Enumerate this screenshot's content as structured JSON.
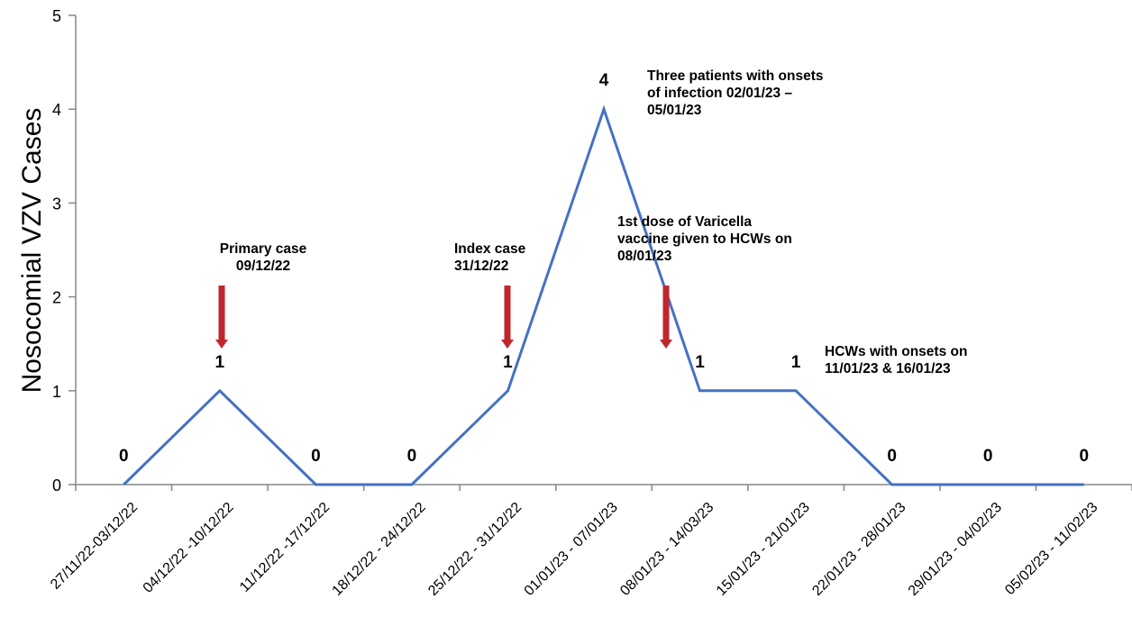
{
  "chart_data": {
    "type": "line",
    "title": "",
    "xlabel": "",
    "ylabel": "Nosocomial VZV Cases",
    "ylim": [
      0,
      5
    ],
    "yticks": [
      "0",
      "1",
      "2",
      "3",
      "4",
      "5"
    ],
    "grid": false,
    "categories": [
      "27/11/22-03/12/22",
      "04/12/22 -10/12/22",
      "11/12/22 -17/12/22",
      "18/12/22 - 24/12/22",
      "25/12/22 - 31/12/22",
      "01/01/23 - 07/01/23",
      "08/01/23 - 14/03/23",
      "15/01/23 - 21/01/23",
      "22/01/23 - 28/01/23",
      "29/01/23 - 04/02/23",
      "05/02/23 - 11/02/23"
    ],
    "series": [
      {
        "values": [
          0,
          1,
          0,
          0,
          1,
          4,
          1,
          1,
          0,
          0,
          0
        ],
        "color": "#4472c4"
      }
    ],
    "data_labels": [
      "0",
      "1",
      "0",
      "0",
      "1",
      "4",
      "1",
      "1",
      "0",
      "0",
      "0"
    ],
    "annotations": [
      {
        "lines": [
          "Primary case",
          "09/12/22"
        ],
        "category_index": 1
      },
      {
        "lines": [
          "Index case",
          "31/12/22"
        ],
        "category_index": 4
      },
      {
        "lines": [
          "Three patients with onsets",
          "of infection 02/01/23 –",
          "05/01/23"
        ],
        "category_index": 5
      },
      {
        "lines": [
          "1st dose of Varicella",
          "vaccine given to HCWs on",
          "08/01/23"
        ],
        "category_index": 6
      },
      {
        "lines": [
          "HCWs with onsets on",
          "11/01/23 & 16/01/23"
        ],
        "category_index": 8
      }
    ],
    "arrow_color": "#c0272d"
  }
}
